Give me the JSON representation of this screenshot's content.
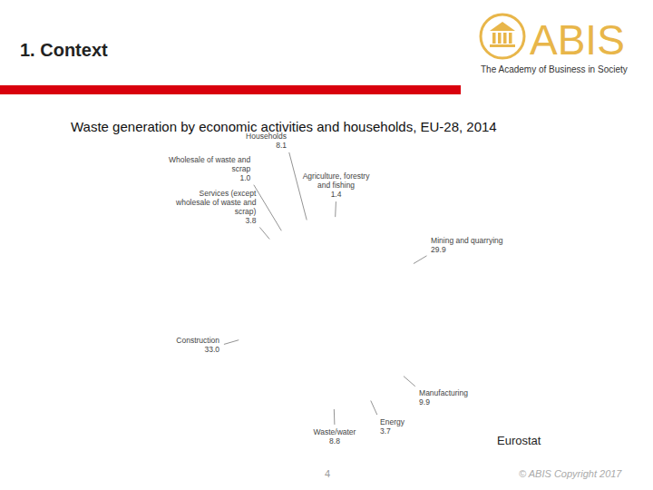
{
  "slide": {
    "title": "1. Context",
    "logo_text": "ABIS",
    "logo_subtitle": "The Academy of Business in Society",
    "source": "Eurostat",
    "page_number": 4,
    "copyright": "© ABIS Copyright 2017"
  },
  "chart_data": {
    "type": "pie",
    "title": "Waste generation by economic activities and households, EU-28, 2014",
    "categories": [
      "Agriculture, forestry and fishing",
      "Mining and quarrying",
      "Manufacturing",
      "Energy",
      "Waste/water",
      "Construction",
      "Services (except wholesale of waste and scrap)",
      "Wholesale of waste and scrap",
      "Households"
    ],
    "values": [
      1.4,
      29.9,
      9.9,
      3.7,
      8.8,
      33.0,
      3.8,
      1.0,
      8.1
    ],
    "value_labels": [
      "1.4",
      "29.9",
      "9.9",
      "3.7",
      "8.8",
      "33.0",
      "3.8",
      "1.0",
      "8.1"
    ],
    "colors": [
      "#7fb2e5",
      "#1b5b5b",
      "#36b4b0",
      "#aee6e3",
      "#6a1f4b",
      "#c8529a",
      "#e3a0c8",
      "#1e3553",
      "#2b6cb6"
    ],
    "data_labels": true
  }
}
